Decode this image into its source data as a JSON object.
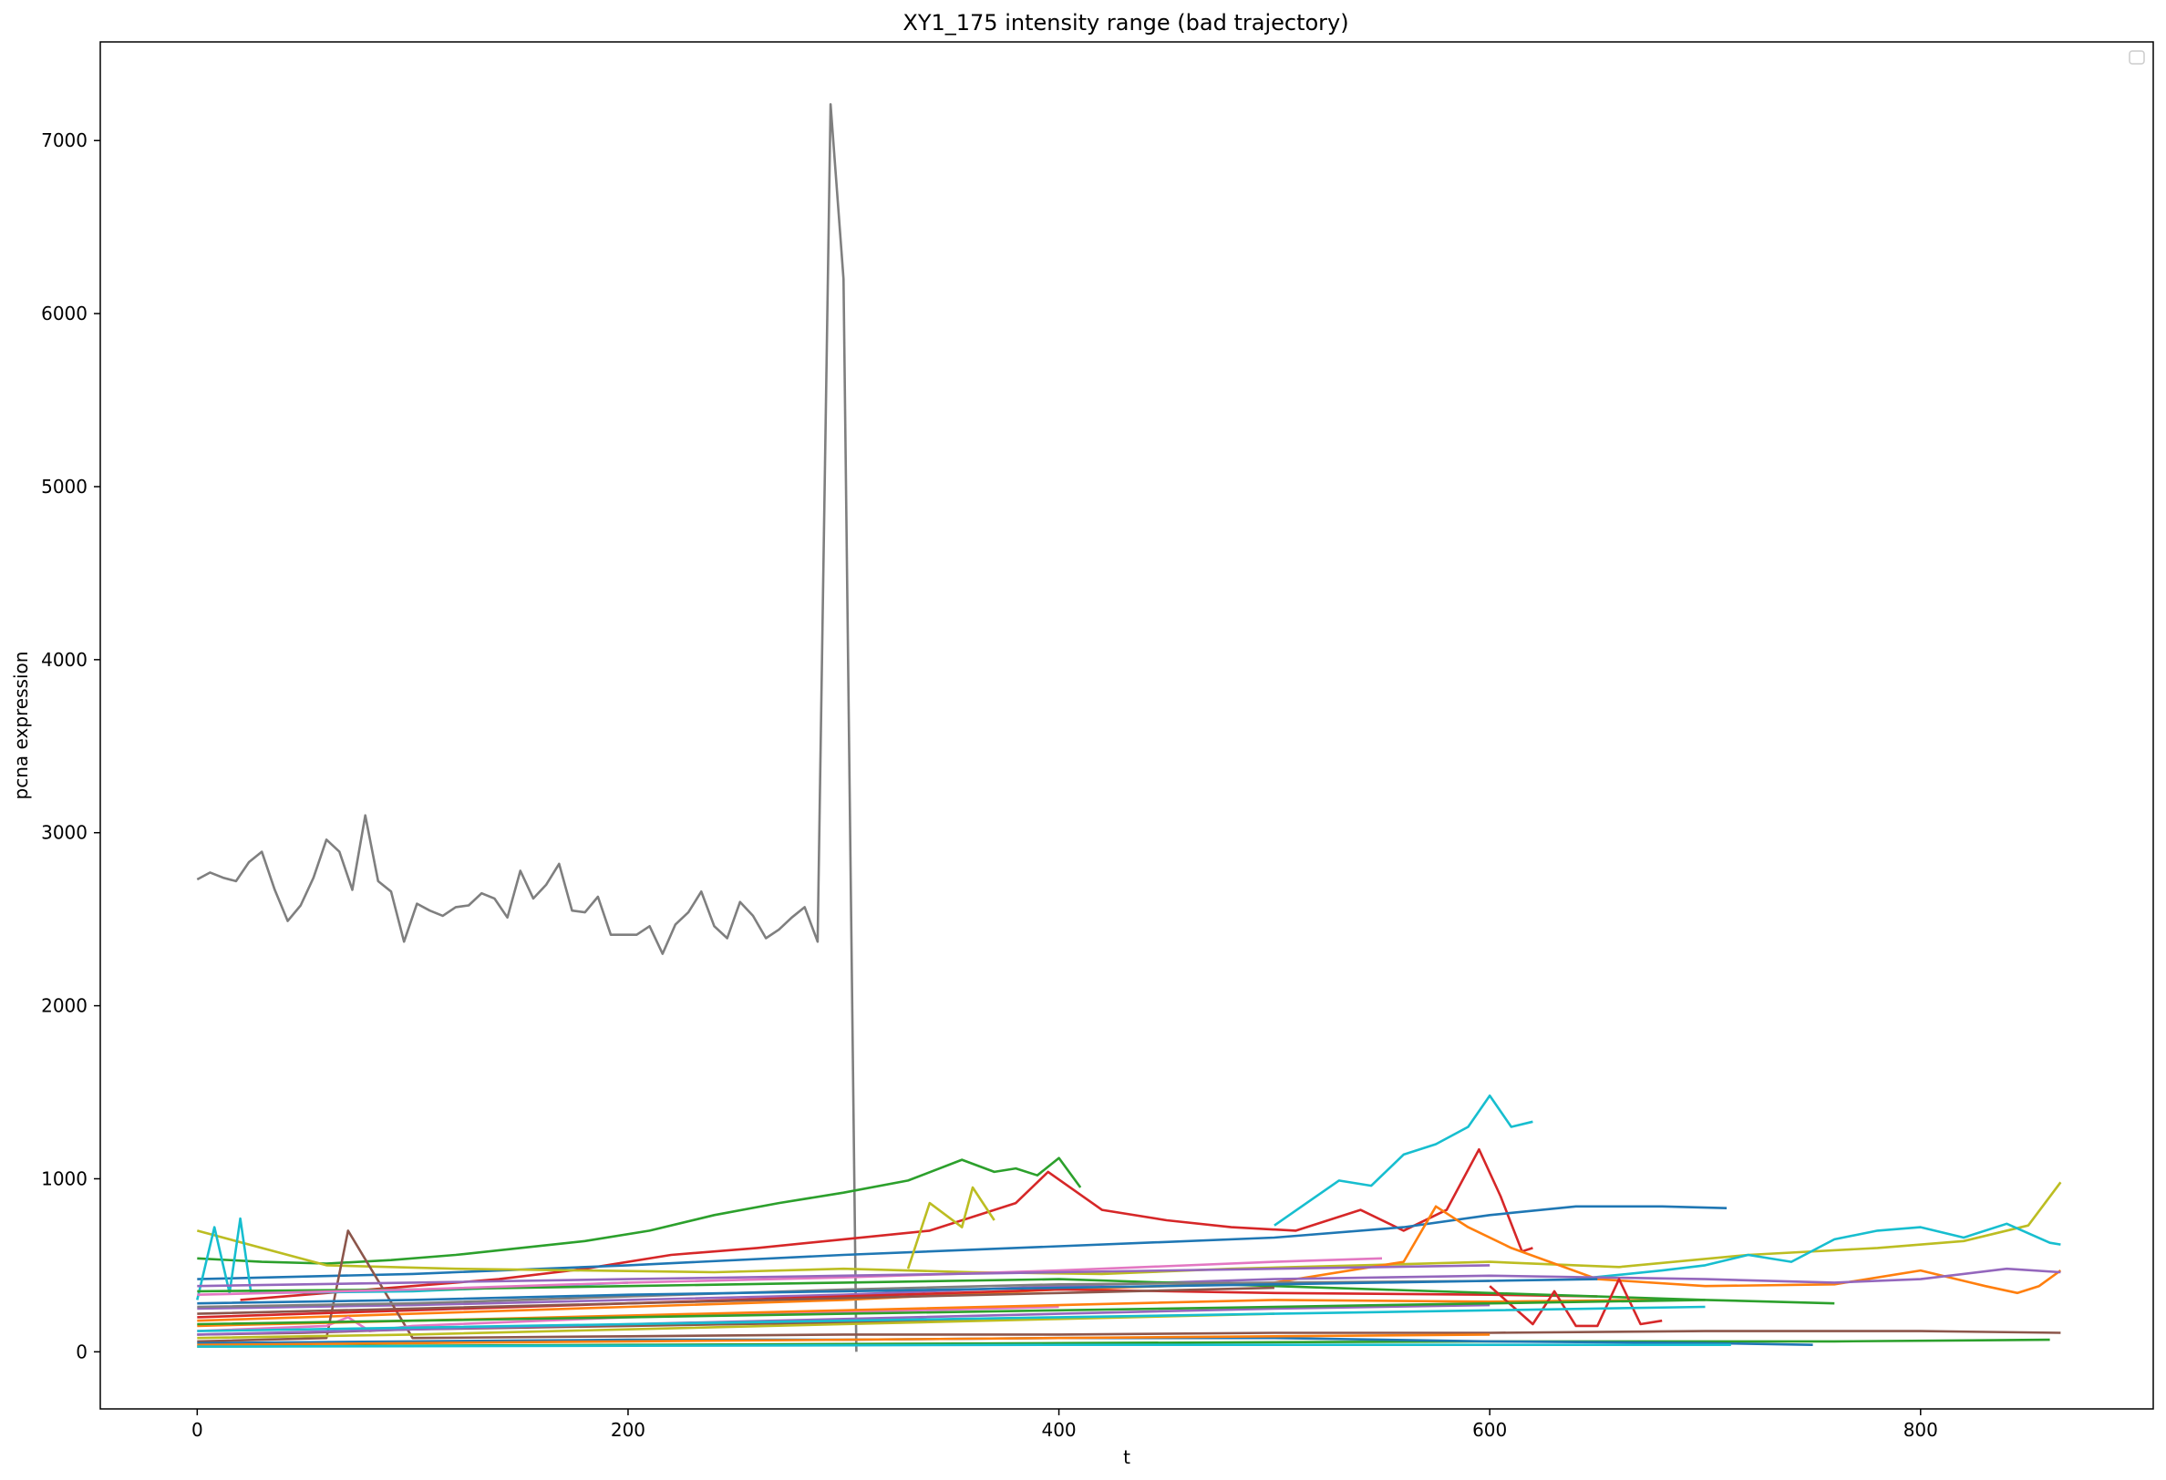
{
  "chart_data": {
    "type": "line",
    "title": "XY1_175 intensity range (bad trajectory)",
    "xlabel": "t",
    "ylabel": "pcna expression",
    "xlim": [
      -45,
      908
    ],
    "ylim": [
      -330,
      7570
    ],
    "xticks": [
      0,
      200,
      400,
      600,
      800
    ],
    "yticks": [
      0,
      1000,
      2000,
      3000,
      4000,
      5000,
      6000,
      7000
    ],
    "grid": false,
    "legend": "top-right (empty)",
    "series": [
      {
        "color": "#7f7f7f",
        "x": [
          0,
          6,
          12,
          18,
          24,
          30,
          36,
          42,
          48,
          54,
          60,
          66,
          72,
          78,
          84,
          90,
          96,
          102,
          108,
          114,
          120,
          126,
          132,
          138,
          144,
          150,
          156,
          162,
          168,
          174,
          180,
          186,
          192,
          198,
          204,
          210,
          216,
          222,
          228,
          234,
          240,
          246,
          252,
          258,
          264,
          270,
          276,
          282,
          288,
          294,
          300,
          306
        ],
        "y": [
          2730,
          2770,
          2740,
          2720,
          2830,
          2890,
          2670,
          2490,
          2580,
          2740,
          2960,
          2890,
          2670,
          3100,
          2720,
          2660,
          2370,
          2590,
          2550,
          2520,
          2570,
          2580,
          2650,
          2620,
          2510,
          2780,
          2620,
          2700,
          2820,
          2550,
          2540,
          2630,
          2410,
          2410,
          2410,
          2460,
          2300,
          2470,
          2540,
          2660,
          2460,
          2390,
          2600,
          2520,
          2390,
          2440,
          2510,
          2570,
          2370,
          7210,
          6200,
          0
        ]
      },
      {
        "color": "#2ca02c",
        "x": [
          0,
          30,
          60,
          90,
          120,
          150,
          180,
          210,
          240,
          270,
          300,
          330,
          355,
          370,
          380,
          390,
          400,
          410
        ],
        "y": [
          540,
          520,
          510,
          530,
          560,
          600,
          640,
          700,
          790,
          860,
          920,
          990,
          1110,
          1040,
          1060,
          1020,
          1120,
          950
        ]
      },
      {
        "color": "#17becf",
        "x": [
          500,
          515,
          530,
          545,
          560,
          575,
          590,
          600,
          610,
          620
        ],
        "y": [
          730,
          860,
          990,
          960,
          1140,
          1200,
          1300,
          1480,
          1300,
          1330
        ]
      },
      {
        "color": "#d62728",
        "x": [
          20,
          60,
          100,
          140,
          180,
          220,
          260,
          300,
          340,
          380,
          395,
          420,
          450,
          480,
          510,
          540,
          560,
          580,
          595,
          605,
          615,
          620
        ],
        "y": [
          300,
          340,
          380,
          420,
          480,
          560,
          600,
          650,
          700,
          860,
          1040,
          820,
          760,
          720,
          700,
          820,
          700,
          820,
          1170,
          900,
          580,
          600
        ]
      },
      {
        "color": "#1f77b4",
        "x": [
          0,
          100,
          200,
          300,
          400,
          500,
          560,
          600,
          640,
          680,
          710
        ],
        "y": [
          420,
          450,
          500,
          560,
          610,
          660,
          720,
          790,
          840,
          840,
          830
        ]
      },
      {
        "color": "#bcbd22",
        "x": [
          0,
          60,
          120,
          180,
          240,
          300,
          360,
          420,
          480,
          540,
          600,
          660,
          720,
          780,
          820,
          850,
          865
        ],
        "y": [
          700,
          500,
          480,
          470,
          460,
          480,
          460,
          450,
          480,
          500,
          520,
          490,
          560,
          600,
          640,
          730,
          980
        ]
      },
      {
        "color": "#17becf",
        "x": [
          640,
          680,
          700,
          720,
          740,
          760,
          780,
          800,
          820,
          840,
          860,
          865
        ],
        "y": [
          420,
          470,
          500,
          560,
          520,
          650,
          700,
          720,
          660,
          740,
          630,
          620
        ]
      },
      {
        "color": "#ff7f0e",
        "x": [
          0,
          100,
          200,
          300,
          400,
          500,
          560,
          575,
          590,
          610,
          650,
          700,
          760,
          800,
          830,
          845,
          855,
          865
        ],
        "y": [
          180,
          220,
          260,
          300,
          360,
          400,
          520,
          840,
          720,
          600,
          420,
          380,
          390,
          470,
          380,
          340,
          380,
          470
        ]
      },
      {
        "color": "#9467bd",
        "x": [
          0,
          100,
          200,
          300,
          400,
          500,
          600,
          700,
          760,
          800,
          840,
          865
        ],
        "y": [
          250,
          270,
          300,
          330,
          380,
          420,
          440,
          420,
          400,
          420,
          480,
          460
        ]
      },
      {
        "color": "#2ca02c",
        "x": [
          0,
          200,
          400,
          600,
          680,
          760,
          860
        ],
        "y": [
          30,
          40,
          50,
          60,
          60,
          60,
          70
        ]
      },
      {
        "color": "#8c564b",
        "x": [
          0,
          60,
          70,
          100,
          200,
          300,
          400,
          500,
          600,
          700,
          800,
          865
        ],
        "y": [
          60,
          80,
          700,
          80,
          90,
          100,
          100,
          110,
          110,
          120,
          120,
          110
        ]
      },
      {
        "color": "#e377c2",
        "x": [
          0,
          60,
          70,
          80,
          100,
          200,
          300,
          400
        ],
        "y": [
          120,
          150,
          200,
          120,
          150,
          200,
          230,
          260
        ]
      },
      {
        "color": "#17becf",
        "x": [
          0,
          8,
          15,
          20,
          25,
          100,
          200
        ],
        "y": [
          300,
          720,
          340,
          770,
          340,
          350,
          400
        ]
      },
      {
        "color": "#bcbd22",
        "x": [
          330,
          340,
          355,
          360,
          370
        ],
        "y": [
          480,
          860,
          720,
          950,
          760
        ]
      },
      {
        "color": "#8c564b",
        "x": [
          0,
          50,
          100,
          150,
          200,
          250,
          300,
          350,
          390
        ],
        "y": [
          100,
          110,
          130,
          140,
          150,
          160,
          170,
          180,
          190
        ]
      },
      {
        "color": "#1f77b4",
        "x": [
          0,
          100,
          200,
          300,
          400,
          500,
          600,
          700,
          750
        ],
        "y": [
          50,
          60,
          70,
          70,
          80,
          80,
          60,
          50,
          40
        ]
      },
      {
        "color": "#ff7f0e",
        "x": [
          0,
          100,
          200,
          300,
          400,
          500,
          600,
          680
        ],
        "y": [
          150,
          180,
          210,
          240,
          270,
          300,
          290,
          300
        ]
      },
      {
        "color": "#d62728",
        "x": [
          0,
          100,
          200,
          300,
          400,
          500,
          600,
          650
        ],
        "y": [
          200,
          240,
          280,
          320,
          360,
          340,
          330,
          320
        ]
      },
      {
        "color": "#9467bd",
        "x": [
          0,
          100,
          200,
          300,
          400,
          500,
          600
        ],
        "y": [
          100,
          130,
          160,
          190,
          220,
          250,
          270
        ]
      },
      {
        "color": "#2ca02c",
        "x": [
          0,
          100,
          200,
          300,
          400,
          500,
          600,
          700,
          760
        ],
        "y": [
          350,
          360,
          380,
          400,
          420,
          380,
          340,
          300,
          280
        ]
      },
      {
        "color": "#7f7f7f",
        "x": [
          0,
          100,
          200,
          300,
          400,
          500,
          600
        ],
        "y": [
          260,
          280,
          320,
          360,
          390,
          400,
          410
        ]
      },
      {
        "color": "#e377c2",
        "x": [
          0,
          100,
          200,
          300,
          400,
          500,
          550
        ],
        "y": [
          330,
          360,
          400,
          430,
          470,
          520,
          540
        ]
      },
      {
        "color": "#1f77b4",
        "x": [
          0,
          100,
          200,
          300,
          400,
          500,
          600,
          650
        ],
        "y": [
          280,
          300,
          330,
          350,
          370,
          390,
          410,
          420
        ]
      },
      {
        "color": "#bcbd22",
        "x": [
          0,
          100,
          200,
          300,
          400,
          500
        ],
        "y": [
          80,
          100,
          130,
          160,
          190,
          220
        ]
      },
      {
        "color": "#ff7f0e",
        "x": [
          0,
          100,
          200,
          300,
          400,
          500,
          600
        ],
        "y": [
          40,
          50,
          60,
          70,
          80,
          90,
          100
        ]
      },
      {
        "color": "#d62728",
        "x": [
          600,
          620,
          630,
          640,
          650,
          660,
          670,
          680
        ],
        "y": [
          380,
          160,
          350,
          150,
          150,
          420,
          160,
          180
        ]
      },
      {
        "color": "#17becf",
        "x": [
          0,
          100,
          200,
          300,
          400,
          500,
          600,
          700
        ],
        "y": [
          120,
          140,
          160,
          180,
          200,
          220,
          240,
          260
        ]
      },
      {
        "color": "#8c564b",
        "x": [
          0,
          100,
          200,
          300,
          400,
          500
        ],
        "y": [
          220,
          250,
          280,
          310,
          340,
          370
        ]
      },
      {
        "color": "#2ca02c",
        "x": [
          0,
          100,
          200,
          300,
          400,
          500,
          600,
          700
        ],
        "y": [
          160,
          180,
          200,
          220,
          240,
          260,
          280,
          300
        ]
      },
      {
        "color": "#9467bd",
        "x": [
          0,
          100,
          200,
          300,
          400,
          500,
          600
        ],
        "y": [
          380,
          400,
          420,
          440,
          460,
          480,
          500
        ]
      },
      {
        "color": "#17becf",
        "x": [
          0,
          200,
          400,
          500,
          600,
          700,
          712
        ],
        "y": [
          30,
          35,
          40,
          40,
          40,
          40,
          40
        ]
      }
    ]
  }
}
